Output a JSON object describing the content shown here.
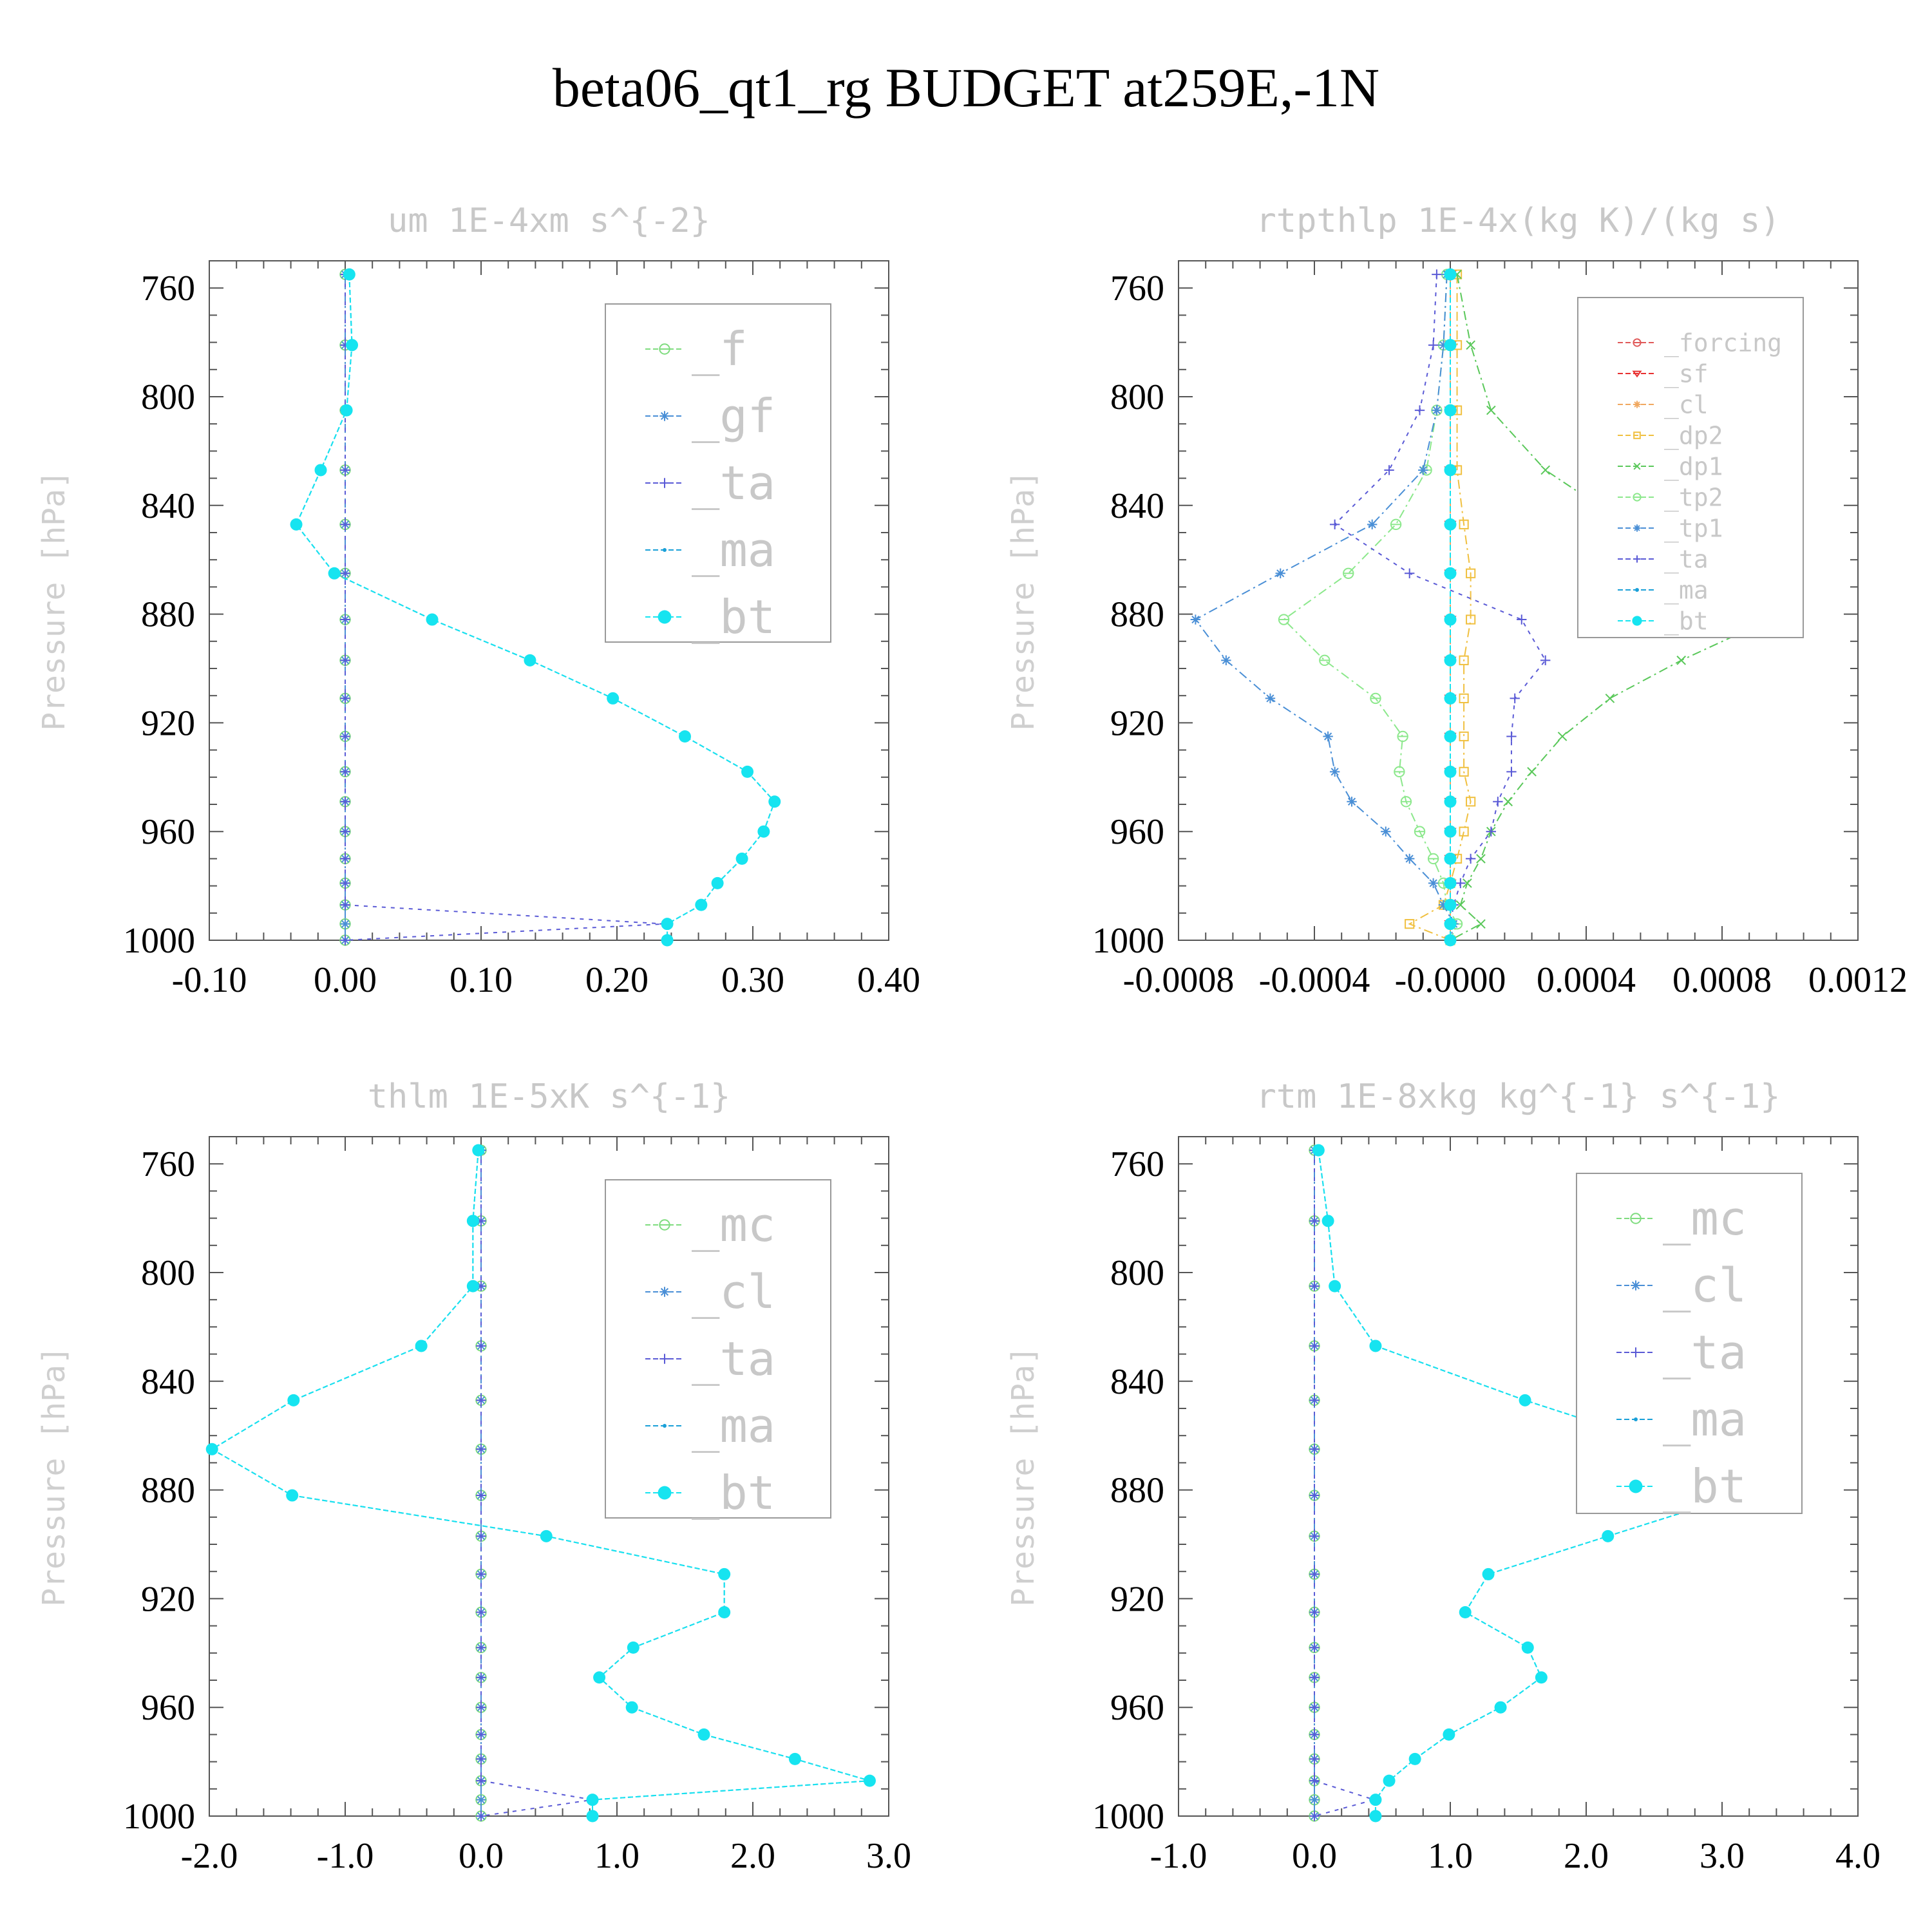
{
  "title": "beta06_qt1_rg  BUDGET at259E,-1N",
  "chart_data": [
    {
      "type": "line",
      "title": "um  1E-4xm s^{-2}",
      "ylabel": "Pressure [hPa]",
      "xlim": [
        -0.1,
        0.4
      ],
      "ylim": [
        750,
        1000
      ],
      "xticks": [
        "-0.10",
        "0.00",
        "0.10",
        "0.20",
        "0.30",
        "0.40"
      ],
      "yticks": [
        "760",
        "800",
        "840",
        "880",
        "920",
        "960",
        "1000"
      ],
      "y": [
        755,
        781,
        805,
        827,
        847,
        865,
        882,
        897,
        911,
        925,
        938,
        949,
        960,
        970,
        979,
        987,
        994,
        1000
      ],
      "series": [
        {
          "name": "_f",
          "color": "#7fdc7f",
          "values": [
            0,
            0,
            0,
            0,
            0,
            0,
            0,
            0,
            0,
            0,
            0,
            0,
            0,
            0,
            0,
            0,
            0,
            0
          ]
        },
        {
          "name": "_gf",
          "color": "#4a8fd6",
          "values": [
            0,
            0,
            0,
            0,
            0,
            0,
            0,
            0,
            0,
            0,
            0,
            0,
            0,
            0,
            0,
            0,
            0,
            0
          ]
        },
        {
          "name": "_ta",
          "color": "#5a5ad6",
          "values": [
            0,
            0,
            0,
            0,
            0,
            0,
            0,
            0,
            0,
            0,
            0,
            0,
            0,
            0,
            0,
            0,
            0.235,
            0
          ]
        },
        {
          "name": "_ma",
          "color": "#1aa0d8",
          "values": [
            0.003,
            0.005,
            0.001,
            -0.018,
            -0.036,
            -0.008,
            0.064,
            0.136,
            0.197,
            0.25,
            0.296,
            0.316,
            0.308,
            0.292,
            0.274,
            0.262,
            0.237,
            0.237
          ]
        },
        {
          "name": "_bt",
          "color": "#16e4f0",
          "values": [
            0.003,
            0.005,
            0.001,
            -0.018,
            -0.036,
            -0.008,
            0.064,
            0.136,
            0.197,
            0.25,
            0.296,
            0.316,
            0.308,
            0.292,
            0.274,
            0.262,
            0.237,
            0.237
          ]
        }
      ]
    },
    {
      "type": "line",
      "title": "rtpthlp  1E-4x(kg K)/(kg s)",
      "ylabel": "Pressure [hPa]",
      "xlim": [
        -0.0008,
        0.0012
      ],
      "ylim": [
        750,
        1000
      ],
      "xticks": [
        "-0.0008",
        "-0.0004",
        "-0.0000",
        "0.0004",
        "0.0008",
        "0.0012"
      ],
      "yticks": [
        "760",
        "800",
        "840",
        "880",
        "920",
        "960",
        "1000"
      ],
      "y": [
        755,
        781,
        805,
        827,
        847,
        865,
        882,
        897,
        911,
        925,
        938,
        949,
        960,
        970,
        979,
        987,
        994,
        1000
      ],
      "series": [
        {
          "name": "_forcing",
          "color": "#e05a5a",
          "values": [
            0,
            0,
            0,
            0,
            0,
            0,
            0,
            0,
            0,
            0,
            0,
            0,
            0,
            0,
            0,
            0,
            0,
            0
          ]
        },
        {
          "name": "_sf",
          "color": "#e83030",
          "values": [
            0,
            0,
            0,
            0,
            0,
            0,
            0,
            0,
            0,
            0,
            0,
            0,
            0,
            0,
            0,
            0,
            0,
            0
          ]
        },
        {
          "name": "_cl",
          "color": "#f0a860",
          "values": [
            0,
            0,
            0,
            0,
            0,
            0,
            0,
            0,
            0,
            0,
            0,
            0,
            0,
            0,
            0,
            0,
            0,
            0
          ]
        },
        {
          "name": "_dp2",
          "color": "#f0c040",
          "values": [
            2e-05,
            2e-05,
            2e-05,
            2e-05,
            4e-05,
            6e-05,
            6e-05,
            4e-05,
            4e-05,
            4e-05,
            4e-05,
            6e-05,
            4e-05,
            2e-05,
            0.0,
            -2e-05,
            -0.00012,
            0
          ]
        },
        {
          "name": "_dp1",
          "color": "#5ac85a",
          "values": [
            2e-05,
            6e-05,
            0.00012,
            0.00028,
            0.00052,
            0.00089,
            0.00094,
            0.00068,
            0.00047,
            0.00033,
            0.00024,
            0.00017,
            0.00012,
            9e-05,
            5e-05,
            3e-05,
            9e-05,
            0
          ]
        },
        {
          "name": "_tp2",
          "color": "#8ce88c",
          "values": [
            -1e-05,
            -2e-05,
            -4e-05,
            -7e-05,
            -0.00016,
            -0.0003,
            -0.00049,
            -0.00037,
            -0.00022,
            -0.00014,
            -0.00015,
            -0.00013,
            -9e-05,
            -5e-05,
            -2e-05,
            -1e-05,
            2e-05,
            0
          ]
        },
        {
          "name": "_tp1",
          "color": "#4a8fd6",
          "values": [
            -1e-05,
            -2e-05,
            -4e-05,
            -8e-05,
            -0.00023,
            -0.0005,
            -0.00075,
            -0.00066,
            -0.00053,
            -0.00036,
            -0.00034,
            -0.00029,
            -0.00019,
            -0.00012,
            -5e-05,
            -2e-05,
            1e-05,
            0
          ]
        },
        {
          "name": "_ta",
          "color": "#5a5ad6",
          "values": [
            -4e-05,
            -5e-05,
            -9e-05,
            -0.00018,
            -0.00034,
            -0.00012,
            0.00021,
            0.00028,
            0.00019,
            0.00018,
            0.00018,
            0.00014,
            0.00012,
            6e-05,
            3e-05,
            1e-05,
            0,
            0
          ]
        },
        {
          "name": "_ma",
          "color": "#1aa0d8",
          "values": [
            0,
            0,
            0,
            0,
            0,
            0,
            0,
            0,
            0,
            0,
            0,
            0,
            0,
            0,
            0,
            0,
            0,
            0
          ]
        },
        {
          "name": "_bt",
          "color": "#16e4f0",
          "values": [
            0,
            0,
            0,
            0,
            0,
            0,
            0,
            0,
            0,
            0,
            0,
            0,
            0,
            0,
            0,
            0,
            0,
            0
          ]
        }
      ]
    },
    {
      "type": "line",
      "title": "thlm  1E-5xK s^{-1}",
      "ylabel": "Pressure [hPa]",
      "xlim": [
        -2.0,
        3.0
      ],
      "ylim": [
        750,
        1000
      ],
      "xticks": [
        "-2.0",
        "-1.0",
        "0.0",
        "1.0",
        "2.0",
        "3.0"
      ],
      "yticks": [
        "760",
        "800",
        "840",
        "880",
        "920",
        "960",
        "1000"
      ],
      "y": [
        755,
        781,
        805,
        827,
        847,
        865,
        882,
        897,
        911,
        925,
        938,
        949,
        960,
        970,
        979,
        987,
        994,
        1000
      ],
      "series": [
        {
          "name": "_mc",
          "color": "#7fdc7f",
          "values": [
            0,
            0,
            0,
            0,
            0,
            0,
            0,
            0,
            0,
            0,
            0,
            0,
            0,
            0,
            0,
            0,
            0,
            0
          ]
        },
        {
          "name": "_cl",
          "color": "#4a8fd6",
          "values": [
            0,
            0,
            0,
            0,
            0,
            0,
            0,
            0,
            0,
            0,
            0,
            0,
            0,
            0,
            0,
            0,
            0,
            0
          ]
        },
        {
          "name": "_ta",
          "color": "#5a5ad6",
          "values": [
            0,
            0,
            0,
            0,
            0,
            0,
            0,
            0,
            0,
            0,
            0,
            0,
            0,
            0,
            0,
            0,
            0.82,
            0
          ]
        },
        {
          "name": "_ma",
          "color": "#1aa0d8",
          "values": [
            -0.02,
            -0.06,
            -0.06,
            -0.44,
            -1.38,
            -1.98,
            -1.39,
            0.48,
            1.79,
            1.79,
            1.12,
            0.87,
            1.11,
            1.64,
            2.31,
            2.86,
            0.82,
            0.82
          ]
        },
        {
          "name": "_bt",
          "color": "#16e4f0",
          "values": [
            -0.02,
            -0.06,
            -0.06,
            -0.44,
            -1.38,
            -1.98,
            -1.39,
            0.48,
            1.79,
            1.79,
            1.12,
            0.87,
            1.11,
            1.64,
            2.31,
            2.86,
            0.82,
            0.82
          ]
        }
      ]
    },
    {
      "type": "line",
      "title": "rtm  1E-8xkg kg^{-1} s^{-1}",
      "ylabel": "Pressure [hPa]",
      "xlim": [
        -1.0,
        4.0
      ],
      "ylim": [
        750,
        1000
      ],
      "xticks": [
        "-1.0",
        "0.0",
        "1.0",
        "2.0",
        "3.0",
        "4.0"
      ],
      "yticks": [
        "760",
        "800",
        "840",
        "880",
        "920",
        "960",
        "1000"
      ],
      "y": [
        755,
        781,
        805,
        827,
        847,
        865,
        882,
        897,
        911,
        925,
        938,
        949,
        960,
        970,
        979,
        987,
        994,
        1000
      ],
      "series": [
        {
          "name": "_mc",
          "color": "#7fdc7f",
          "values": [
            0,
            0,
            0,
            0,
            0,
            0,
            0,
            0,
            0,
            0,
            0,
            0,
            0,
            0,
            0,
            0,
            0,
            0
          ]
        },
        {
          "name": "_cl",
          "color": "#4a8fd6",
          "values": [
            0,
            0,
            0,
            0,
            0,
            0,
            0,
            0,
            0,
            0,
            0,
            0,
            0,
            0,
            0,
            0,
            0,
            0
          ]
        },
        {
          "name": "_ta",
          "color": "#5a5ad6",
          "values": [
            0,
            0,
            0,
            0,
            0,
            0,
            0,
            0,
            0,
            0,
            0,
            0,
            0,
            0,
            0,
            0,
            0.44,
            0
          ]
        },
        {
          "name": "_ma",
          "color": "#1aa0d8",
          "values": [
            0.03,
            0.1,
            0.15,
            0.45,
            1.55,
            2.66,
            3.11,
            2.16,
            1.28,
            1.11,
            1.57,
            1.67,
            1.37,
            0.99,
            0.74,
            0.55,
            0.45,
            0.45
          ]
        },
        {
          "name": "_bt",
          "color": "#16e4f0",
          "values": [
            0.03,
            0.1,
            0.15,
            0.45,
            1.55,
            2.66,
            3.11,
            2.16,
            1.28,
            1.11,
            1.57,
            1.67,
            1.37,
            0.99,
            0.74,
            0.55,
            0.45,
            0.45
          ]
        }
      ]
    }
  ]
}
